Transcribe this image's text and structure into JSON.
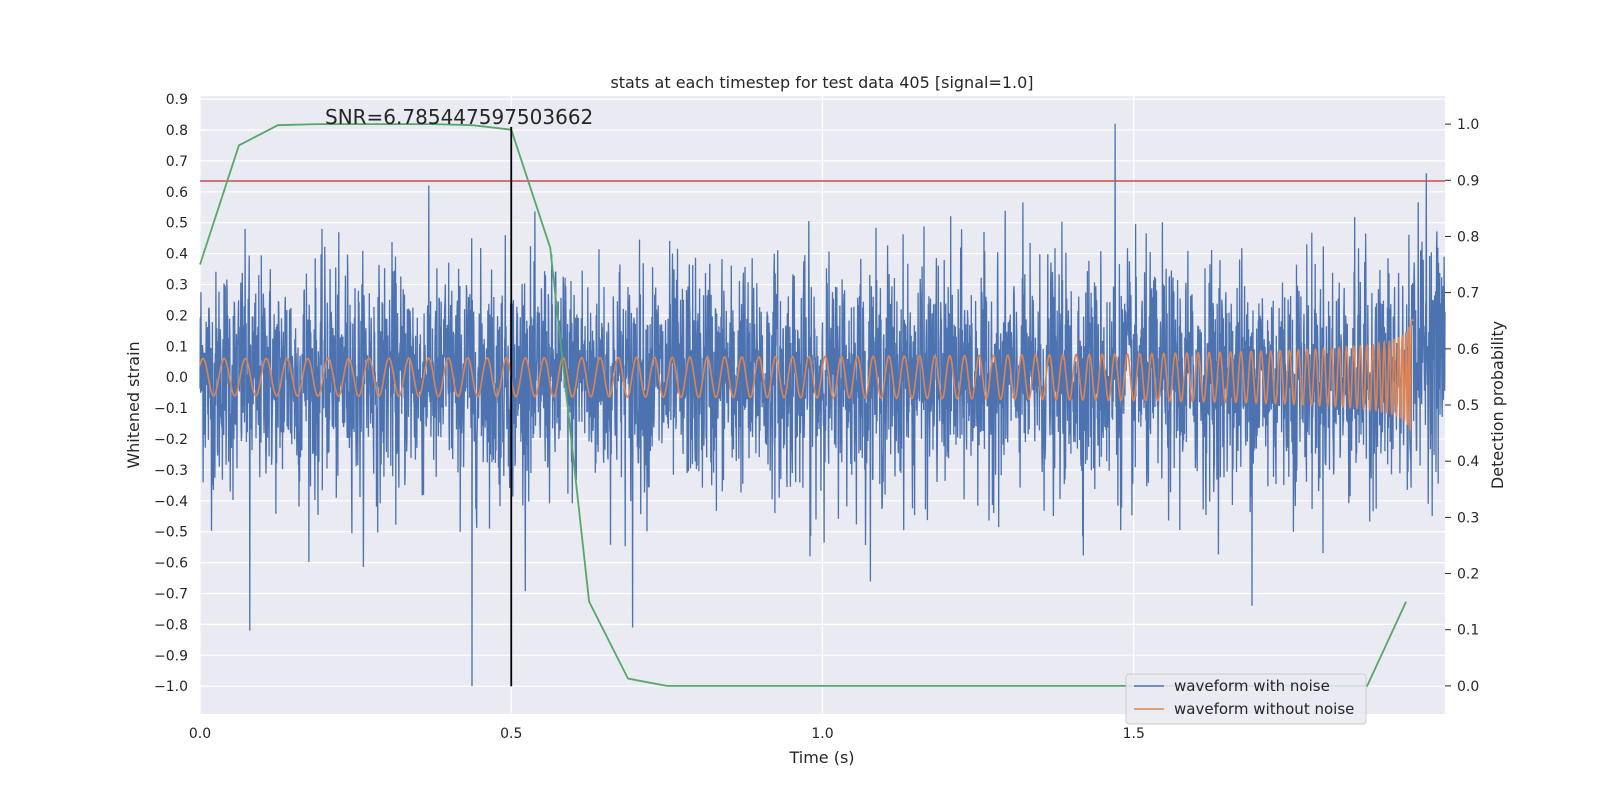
{
  "chart_data": {
    "type": "line",
    "title": "stats at each timestep for test data 405 [signal=1.0]",
    "xlabel": "Time (s)",
    "ylabel_left": "Whitened strain",
    "ylabel_right": "Detection probability",
    "annotation": "SNR=6.785447597503662",
    "xlim": [
      0,
      2
    ],
    "ylim_left": [
      -1.09,
      0.91
    ],
    "ylim_right": [
      -0.05,
      1.05
    ],
    "x_ticks": [
      0.0,
      0.5,
      1.0,
      1.5
    ],
    "x_tick_labels": [
      "0.0",
      "0.5",
      "1.0",
      "1.5"
    ],
    "y_left_ticks": [
      0.9,
      0.8,
      0.7,
      0.6,
      0.5,
      0.4,
      0.3,
      0.2,
      0.1,
      0.0,
      -0.1,
      -0.2,
      -0.3,
      -0.4,
      -0.5,
      -0.6,
      -0.7,
      -0.8,
      -0.9,
      -1.0
    ],
    "y_left_tick_labels": [
      "0.9",
      "0.8",
      "0.7",
      "0.6",
      "0.5",
      "0.4",
      "0.3",
      "0.2",
      "0.1",
      "0.0",
      "−0.1",
      "−0.2",
      "−0.3",
      "−0.4",
      "−0.5",
      "−0.6",
      "−0.7",
      "−0.8",
      "−0.9",
      "−1.0"
    ],
    "y_right_ticks": [
      1.0,
      0.9,
      0.8,
      0.7,
      0.6,
      0.5,
      0.4,
      0.3,
      0.2,
      0.1,
      0.0
    ],
    "y_right_tick_labels": [
      "1.0",
      "0.9",
      "0.8",
      "0.7",
      "0.6",
      "0.5",
      "0.4",
      "0.3",
      "0.2",
      "0.1",
      "0.0"
    ],
    "grid": true,
    "legend_position": "bottom-right",
    "series": [
      {
        "name": "waveform with noise",
        "color": "#4c72b0",
        "axis": "left",
        "kind": "noisy",
        "approx_std": 0.18,
        "notable_points": [
          [
            0.08,
            -0.82
          ],
          [
            0.437,
            -1.0
          ],
          [
            0.695,
            -0.81
          ],
          [
            0.98,
            -0.58
          ],
          [
            1.47,
            0.82
          ],
          [
            1.69,
            -0.74
          ],
          [
            1.97,
            0.66
          ]
        ]
      },
      {
        "name": "waveform without noise",
        "color": "#dd8452",
        "axis": "left",
        "kind": "chirp",
        "amplitude_start": 0.025,
        "amplitude_end": 0.19,
        "merger_time": 1.95
      },
      {
        "color": "#55a868",
        "axis": "right",
        "kind": "probability",
        "x": [
          0.0,
          0.0625,
          0.125,
          0.1875,
          0.25,
          0.3125,
          0.375,
          0.4375,
          0.5,
          0.5625,
          0.625,
          0.6875,
          0.75,
          0.8125,
          0.875,
          0.9375,
          1.0,
          1.0625,
          1.125,
          1.1875,
          1.25,
          1.3125,
          1.375,
          1.4375,
          1.5,
          1.5625,
          1.625,
          1.6875,
          1.75,
          1.8125,
          1.875,
          1.9375
        ],
        "y": [
          0.75,
          0.962,
          0.998,
          1.0,
          1.0,
          1.0,
          1.0,
          0.998,
          0.99,
          0.78,
          0.15,
          0.013,
          0.0,
          0.0,
          0.0,
          0.0,
          0.0,
          0.0,
          0.0,
          0.0,
          0.0,
          0.0,
          0.0,
          0.0,
          0.0,
          0.0,
          0.0,
          0.0,
          0.0,
          0.0,
          0.0,
          0.15
        ]
      }
    ],
    "threshold_line": {
      "axis": "left",
      "y": 0.635,
      "color": "#c44e52"
    },
    "marker_line": {
      "x": 0.5,
      "y_from": -1.0,
      "y_to": 0.81,
      "color": "#000000"
    }
  }
}
